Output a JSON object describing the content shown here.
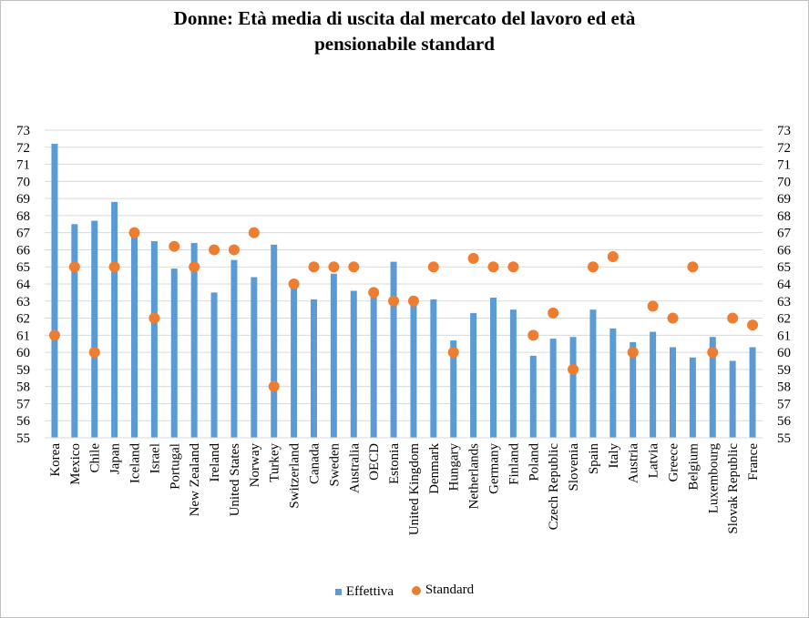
{
  "chart_data": {
    "type": "bar",
    "title_line1": "Donne: Età media di uscita dal mercato del lavoro ed età",
    "title_line2": "pensionabile standard",
    "ylim": [
      55,
      73
    ],
    "yticks": [
      55,
      56,
      57,
      58,
      59,
      60,
      61,
      62,
      63,
      64,
      65,
      66,
      67,
      68,
      69,
      70,
      71,
      72,
      73
    ],
    "categories": [
      "Korea",
      "Mexico",
      "Chile",
      "Japan",
      "Iceland",
      "Israel",
      "Portugal",
      "New Zealand",
      "Ireland",
      "United States",
      "Norway",
      "Turkey",
      "Switzerland",
      "Canada",
      "Sweden",
      "Australia",
      "OECD",
      "Estonia",
      "United Kingdom",
      "Denmark",
      "Hungary",
      "Netherlands",
      "Germany",
      "Finland",
      "Poland",
      "Czech Republic",
      "Slovenia",
      "Spain",
      "Italy",
      "Austria",
      "Latvia",
      "Greece",
      "Belgium",
      "Luxembourg",
      "Slovak Republic",
      "France"
    ],
    "series": [
      {
        "name": "Effettiva",
        "kind": "bar",
        "color": "#5b9bd5",
        "values": [
          72.2,
          67.5,
          67.7,
          68.8,
          67.0,
          66.5,
          64.9,
          66.4,
          63.5,
          65.4,
          64.4,
          66.3,
          64.0,
          63.1,
          64.6,
          63.6,
          63.4,
          65.3,
          62.9,
          63.1,
          60.7,
          62.3,
          63.2,
          62.5,
          59.8,
          60.8,
          60.9,
          62.5,
          61.4,
          60.6,
          61.2,
          60.3,
          59.7,
          60.9,
          59.5,
          60.3
        ]
      },
      {
        "name": "Standard",
        "kind": "marker",
        "color": "#ed7d31",
        "values": [
          61,
          65,
          60,
          65,
          67,
          62,
          66.2,
          65,
          66,
          66,
          67,
          58,
          64,
          65,
          65,
          65,
          63.5,
          63,
          63,
          65,
          60,
          65.5,
          65,
          65,
          61,
          62.3,
          59,
          65,
          65.6,
          60,
          62.7,
          62,
          65,
          60,
          62,
          61.6
        ]
      }
    ],
    "legend_position": "bottom",
    "grid": true
  },
  "legend": {
    "effettiva": "Effettiva",
    "standard": "Standard"
  }
}
